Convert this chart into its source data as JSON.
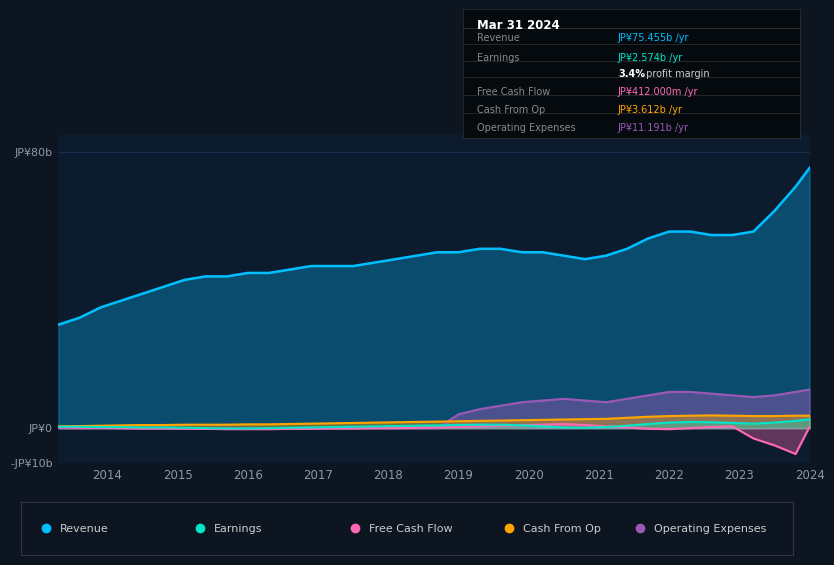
{
  "background_color": "#0d1520",
  "plot_bg_color": "#0d1b2e",
  "years": [
    2013.3,
    2013.6,
    2013.9,
    2014.2,
    2014.5,
    2014.8,
    2015.1,
    2015.4,
    2015.7,
    2016.0,
    2016.3,
    2016.6,
    2016.9,
    2017.2,
    2017.5,
    2017.8,
    2018.1,
    2018.4,
    2018.7,
    2019.0,
    2019.3,
    2019.6,
    2019.9,
    2020.2,
    2020.5,
    2020.8,
    2021.1,
    2021.4,
    2021.7,
    2022.0,
    2022.3,
    2022.6,
    2022.9,
    2023.2,
    2023.5,
    2023.8,
    2024.0
  ],
  "revenue": [
    30,
    32,
    35,
    37,
    39,
    41,
    43,
    44,
    44,
    45,
    45,
    46,
    47,
    47,
    47,
    48,
    49,
    50,
    51,
    51,
    52,
    52,
    51,
    51,
    50,
    49,
    50,
    52,
    55,
    57,
    57,
    56,
    56,
    57,
    63,
    70,
    75.455
  ],
  "earnings": [
    0.4,
    0.4,
    0.3,
    0.3,
    0.2,
    0.2,
    0.1,
    0.0,
    -0.1,
    -0.1,
    0.0,
    0.1,
    0.2,
    0.3,
    0.4,
    0.5,
    0.6,
    0.7,
    0.8,
    0.9,
    1.0,
    1.0,
    0.8,
    0.5,
    0.2,
    0.1,
    0.3,
    0.7,
    1.2,
    1.6,
    1.8,
    1.7,
    1.5,
    1.3,
    1.6,
    2.1,
    2.574
  ],
  "free_cash_flow": [
    0.2,
    0.1,
    0.1,
    0.0,
    -0.1,
    -0.1,
    -0.2,
    -0.2,
    -0.3,
    -0.3,
    -0.3,
    -0.2,
    -0.2,
    -0.1,
    -0.1,
    0.0,
    0.0,
    0.1,
    0.2,
    0.3,
    0.5,
    0.7,
    0.8,
    1.0,
    1.2,
    0.9,
    0.5,
    0.2,
    -0.2,
    -0.3,
    0.0,
    0.3,
    0.5,
    -3.0,
    -5.0,
    -7.5,
    0.412
  ],
  "cash_from_op": [
    0.5,
    0.6,
    0.7,
    0.8,
    0.9,
    0.9,
    1.0,
    1.0,
    1.0,
    1.1,
    1.1,
    1.2,
    1.3,
    1.4,
    1.5,
    1.6,
    1.7,
    1.8,
    1.9,
    2.0,
    2.1,
    2.2,
    2.3,
    2.4,
    2.5,
    2.6,
    2.7,
    3.0,
    3.3,
    3.5,
    3.6,
    3.7,
    3.6,
    3.5,
    3.5,
    3.6,
    3.612
  ],
  "operating_expenses": [
    0.0,
    0.0,
    0.0,
    0.0,
    0.0,
    0.0,
    0.0,
    0.0,
    0.0,
    0.0,
    0.0,
    0.0,
    0.0,
    0.0,
    0.0,
    0.0,
    0.0,
    0.0,
    0.0,
    4.0,
    5.5,
    6.5,
    7.5,
    8.0,
    8.5,
    8.0,
    7.5,
    8.5,
    9.5,
    10.5,
    10.5,
    10.0,
    9.5,
    9.0,
    9.5,
    10.5,
    11.191
  ],
  "colors": {
    "revenue": "#00bfff",
    "earnings": "#00e5c8",
    "free_cash_flow": "#ff69b4",
    "cash_from_op": "#ffa500",
    "operating_expenses": "#9b59b6"
  },
  "ylim_min": -10,
  "ylim_max": 85,
  "y80_label": "JP¥80b",
  "y0_label": "JP¥0",
  "yneg_label": "-JP¥10b",
  "xlabel_ticks": [
    2014,
    2015,
    2016,
    2017,
    2018,
    2019,
    2020,
    2021,
    2022,
    2023,
    2024
  ],
  "infobox_title": "Mar 31 2024",
  "infobox_rows": [
    {
      "label": "Revenue",
      "value": "JP¥75.455b /yr",
      "value_color": "#00bfff",
      "bold_part": null
    },
    {
      "label": "Earnings",
      "value": "JP¥2.574b /yr",
      "value_color": "#00e5c8",
      "bold_part": null
    },
    {
      "label": "",
      "value": " profit margin",
      "value_color": "#cccccc",
      "bold_part": "3.4%"
    },
    {
      "label": "Free Cash Flow",
      "value": "JP¥412.000m /yr",
      "value_color": "#ff69b4",
      "bold_part": null
    },
    {
      "label": "Cash From Op",
      "value": "JP¥3.612b /yr",
      "value_color": "#ffa500",
      "bold_part": null
    },
    {
      "label": "Operating Expenses",
      "value": "JP¥11.191b /yr",
      "value_color": "#9b59b6",
      "bold_part": null
    }
  ],
  "legend_items": [
    {
      "label": "Revenue",
      "color": "#00bfff"
    },
    {
      "label": "Earnings",
      "color": "#00e5c8"
    },
    {
      "label": "Free Cash Flow",
      "color": "#ff69b4"
    },
    {
      "label": "Cash From Op",
      "color": "#ffa500"
    },
    {
      "label": "Operating Expenses",
      "color": "#9b59b6"
    }
  ]
}
